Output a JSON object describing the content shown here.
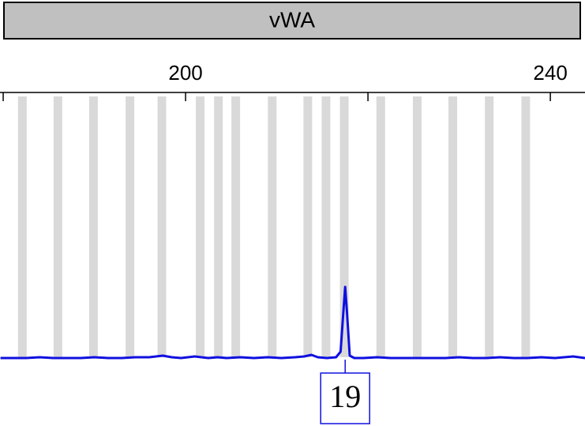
{
  "chart_data": {
    "type": "line",
    "title": "vWA",
    "xlim": [
      179.65,
      243.8
    ],
    "xticks": [
      {
        "value": 180,
        "label": null
      },
      200,
      {
        "value": 220,
        "label": null
      },
      240
    ],
    "ylim": [
      0,
      330
    ],
    "bins": [
      182.1,
      186.0,
      189.9,
      193.9,
      197.4,
      201.6,
      203.6,
      205.5,
      209.5,
      213.4,
      215.4,
      217.4,
      221.4,
      225.4,
      229.3,
      233.3,
      237.3
    ],
    "bin_color": "#d9d9d9",
    "series": [
      {
        "color": "#1010e0",
        "x": [
          179.7,
          181,
          182.5,
          184,
          185.5,
          187,
          188.5,
          190,
          191.5,
          193,
          194.5,
          196,
          197.5,
          198.5,
          199.5,
          201,
          202.5,
          203.5,
          204.5,
          206,
          207.5,
          209,
          210.5,
          212,
          213,
          213.8,
          214.5,
          215.5,
          216.5,
          217,
          217.3,
          217.5,
          217.7,
          218,
          218.5,
          219.5,
          221,
          222.5,
          224,
          225.5,
          227,
          228.5,
          230,
          231.5,
          233,
          234.5,
          236,
          237.5,
          239,
          240.5,
          241.5,
          242.5,
          243.8
        ],
        "values": [
          2,
          2,
          2,
          3,
          2,
          2,
          2,
          3,
          2,
          2,
          3,
          3,
          5,
          3,
          2,
          4,
          2,
          3,
          2,
          3,
          2,
          3,
          2,
          3,
          4,
          6,
          3,
          2,
          3,
          10,
          60,
          92,
          60,
          5,
          2,
          2,
          3,
          2,
          2,
          2,
          2,
          2,
          3,
          2,
          2,
          3,
          2,
          2,
          3,
          2,
          3,
          4,
          2
        ]
      }
    ],
    "peak_labels": [
      {
        "x": 217.5,
        "label": "19"
      }
    ]
  }
}
